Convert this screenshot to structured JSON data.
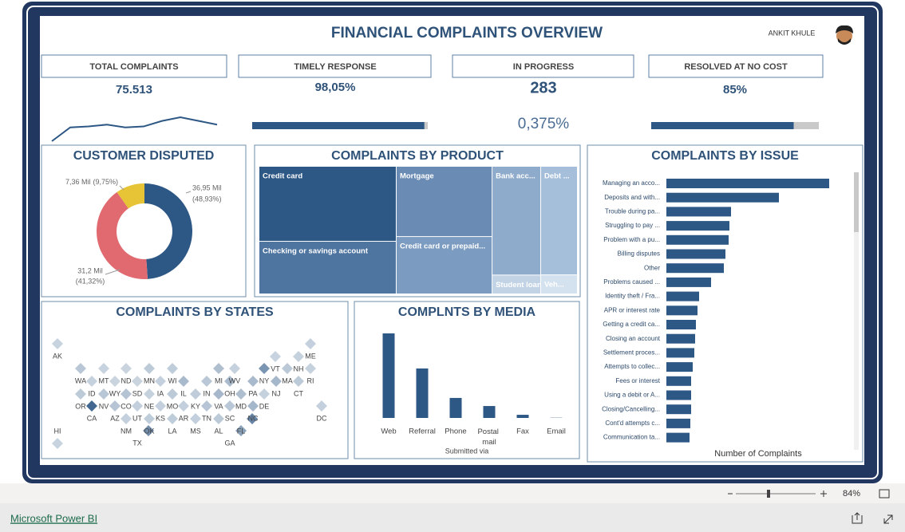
{
  "header": {
    "title": "FINANCIAL COMPLAINTS OVERVIEW",
    "author": "ANKIT KHULE"
  },
  "kpis": [
    {
      "label": "TOTAL COMPLAINTS",
      "value": "75.513"
    },
    {
      "label": "TIMELY RESPONSE"
    },
    {
      "label": "IN PROGRESS",
      "value": "283",
      "share": "0,375%"
    },
    {
      "label": "RESOLVED AT NO COST"
    }
  ],
  "chart_data": [
    {
      "type": "line",
      "values": [
        5,
        20,
        21,
        23,
        20,
        21,
        27,
        31,
        27,
        23
      ],
      "color": "#2d5784"
    },
    {
      "type": "progress",
      "values": [
        98.05
      ],
      "value_labels": [
        "98,05%"
      ],
      "xlim": [
        0,
        100
      ],
      "color": "#2d5784",
      "track_color": "#c9c9c9"
    },
    {
      "type": "progress",
      "values": [
        85
      ],
      "value_labels": [
        "85%"
      ],
      "xlim": [
        0,
        100
      ],
      "color": "#2d5784",
      "track_color": "#c9c9c9"
    },
    {
      "type": "donut",
      "title": "CUSTOMER DISPUTED",
      "values": [
        36.95,
        31.2,
        7.36
      ],
      "value_labels": [
        "36,95 Mil",
        "31,2 Mil",
        "7,36 Mil"
      ],
      "percent_labels": [
        "(48,93%)",
        "(41,32%)",
        "(9,75%)"
      ],
      "colors": [
        "#2d5784",
        "#e06a70",
        "#e6c435"
      ]
    },
    {
      "type": "treemap",
      "title": "COMPLAINTS BY PRODUCT",
      "categories": [
        "Credit card",
        "Checking or savings account",
        "Mortgage",
        "Credit card or prepaid...",
        "Bank acc...",
        "Student loan",
        "Debt ...",
        "Veh..."
      ],
      "values": [
        19100,
        13400,
        12500,
        10200,
        9800,
        1700,
        7400,
        1300
      ],
      "colors": [
        "#2d5784",
        "#4e74a0",
        "#6a8cb4",
        "#7b9bc0",
        "#8eabcb",
        "#c2d3e6",
        "#a5bfda",
        "#d4e1ee"
      ]
    },
    {
      "type": "map",
      "title": "COMPLAINTS BY STATES",
      "categories": [
        "AK",
        "ME",
        "VT",
        "NH",
        "WA",
        "MT",
        "ND",
        "MN",
        "WI",
        "MI",
        "WV",
        "NY",
        "MA",
        "RI",
        "ID",
        "WY",
        "SD",
        "IA",
        "IL",
        "IN",
        "OH",
        "PA",
        "NJ",
        "CT",
        "OR",
        "NV",
        "CO",
        "NE",
        "MO",
        "KY",
        "VA",
        "MD",
        "DE",
        "CA",
        "AZ",
        "UT",
        "KS",
        "AR",
        "TN",
        "SC",
        "NC",
        "DC",
        "HI",
        "NM",
        "OK",
        "LA",
        "MS",
        "AL",
        "FL",
        "TX",
        "GA"
      ],
      "values": [
        200,
        400,
        200,
        300,
        1300,
        200,
        100,
        900,
        800,
        1900,
        300,
        5600,
        1100,
        300,
        300,
        100,
        100,
        400,
        2300,
        1200,
        2200,
        2300,
        2600,
        900,
        900,
        1300,
        1500,
        300,
        1000,
        700,
        2500,
        2000,
        300,
        9500,
        1400,
        500,
        400,
        500,
        1400,
        1200,
        2600,
        400,
        200,
        400,
        800,
        800,
        500,
        1000,
        6800,
        6200,
        4500
      ],
      "colors": [
        "#c3cfdc",
        "#2d5784"
      ]
    },
    {
      "type": "bar",
      "title": "COMPLNTS BY MEDIA",
      "x_label": "Submitted via",
      "categories": [
        "Web",
        "Referral",
        "Phone",
        "Postal mail",
        "Fax",
        "Email"
      ],
      "values": [
        37600,
        22000,
        8900,
        5300,
        1400,
        100
      ],
      "color": "#2d5784"
    },
    {
      "type": "hbar",
      "title": "COMPLAINTS BY ISSUE",
      "x_label": "Number of Complaints",
      "categories": [
        "Managing an acco...",
        "Deposits and with...",
        "Trouble during pa...",
        "Struggling to pay ...",
        "Problem with a pu...",
        "Billing disputes",
        "Other",
        "Problems caused ...",
        "Identity theft / Fra...",
        "APR or interest rate",
        "Getting a credit ca...",
        "Closing an account",
        "Settlement proces...",
        "Attempts to collec...",
        "Fees or interest",
        "Using a debit or A...",
        "Closing/Cancelling...",
        "Cont'd attempts c...",
        "Communication ta..."
      ],
      "values": [
        8160,
        5640,
        3240,
        3160,
        3120,
        2960,
        2880,
        2240,
        1640,
        1560,
        1480,
        1440,
        1400,
        1320,
        1240,
        1240,
        1240,
        1200,
        1160
      ],
      "color": "#2d5784"
    }
  ],
  "footer": {
    "brand": "Microsoft Power BI",
    "zoom": "84%"
  }
}
